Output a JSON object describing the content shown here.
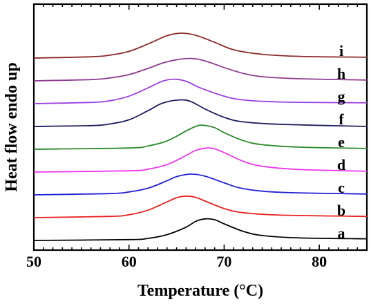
{
  "chart_data": {
    "type": "line",
    "title": "",
    "xlabel": "Temperature (°C)",
    "ylabel": "Heat flow endo up",
    "xlim": [
      50,
      85
    ],
    "x_ticks": [
      50,
      60,
      70,
      80
    ],
    "y_ticks_shown": false,
    "grid": false,
    "legend": "none",
    "series": [
      {
        "name": "a",
        "color": "#000000",
        "points": [
          [
            50,
            0.0
          ],
          [
            60,
            0.1
          ],
          [
            62,
            0.25
          ],
          [
            64,
            0.7
          ],
          [
            66,
            1.6
          ],
          [
            67,
            2.3
          ],
          [
            68,
            2.6
          ],
          [
            69,
            2.5
          ],
          [
            70,
            2.0
          ],
          [
            72,
            1.1
          ],
          [
            74,
            0.6
          ],
          [
            78,
            0.3
          ],
          [
            85,
            0.2
          ]
        ]
      },
      {
        "name": "b",
        "color": "#e8221e",
        "points": [
          [
            50,
            0.0
          ],
          [
            58,
            0.15
          ],
          [
            60,
            0.35
          ],
          [
            62,
            0.9
          ],
          [
            64,
            1.9
          ],
          [
            65,
            2.4
          ],
          [
            66,
            2.6
          ],
          [
            67,
            2.45
          ],
          [
            68,
            2.0
          ],
          [
            70,
            1.1
          ],
          [
            72,
            0.6
          ],
          [
            76,
            0.3
          ],
          [
            85,
            0.15
          ]
        ]
      },
      {
        "name": "c",
        "color": "#1f1fd6",
        "points": [
          [
            50,
            0.0
          ],
          [
            58,
            0.15
          ],
          [
            60,
            0.35
          ],
          [
            62,
            0.8
          ],
          [
            64,
            1.7
          ],
          [
            65,
            2.2
          ],
          [
            66.5,
            2.5
          ],
          [
            68,
            2.25
          ],
          [
            70,
            1.45
          ],
          [
            72,
            0.75
          ],
          [
            76,
            0.3
          ],
          [
            85,
            0.1
          ]
        ]
      },
      {
        "name": "d",
        "color": "#ee33ee",
        "points": [
          [
            50,
            0.0
          ],
          [
            60,
            0.15
          ],
          [
            62,
            0.35
          ],
          [
            64,
            0.9
          ],
          [
            66,
            2.0
          ],
          [
            67,
            2.6
          ],
          [
            68.2,
            2.9
          ],
          [
            69,
            2.8
          ],
          [
            70,
            2.35
          ],
          [
            72,
            1.3
          ],
          [
            74,
            0.7
          ],
          [
            78,
            0.3
          ],
          [
            85,
            0.1
          ]
        ]
      },
      {
        "name": "e",
        "color": "#2a8a2a",
        "points": [
          [
            50,
            0.0
          ],
          [
            60,
            0.15
          ],
          [
            62,
            0.4
          ],
          [
            64,
            1.0
          ],
          [
            66,
            2.2
          ],
          [
            67,
            2.75
          ],
          [
            67.7,
            2.9
          ],
          [
            69,
            2.6
          ],
          [
            70,
            2.0
          ],
          [
            72,
            1.05
          ],
          [
            74,
            0.55
          ],
          [
            78,
            0.25
          ],
          [
            85,
            0.1
          ]
        ]
      },
      {
        "name": "f",
        "color": "#1a1a5e",
        "points": [
          [
            50,
            0.0
          ],
          [
            56,
            0.1
          ],
          [
            58,
            0.3
          ],
          [
            60,
            0.8
          ],
          [
            62,
            1.9
          ],
          [
            63.5,
            2.8
          ],
          [
            65.3,
            3.2
          ],
          [
            66.5,
            3.0
          ],
          [
            68,
            2.1
          ],
          [
            70,
            1.1
          ],
          [
            72,
            0.55
          ],
          [
            76,
            0.25
          ],
          [
            85,
            0.0
          ]
        ]
      },
      {
        "name": "g",
        "color": "#9b3ee0",
        "points": [
          [
            50,
            0.0
          ],
          [
            56,
            0.15
          ],
          [
            58,
            0.35
          ],
          [
            60,
            0.9
          ],
          [
            62,
            1.9
          ],
          [
            63.5,
            2.7
          ],
          [
            64.7,
            2.95
          ],
          [
            66,
            2.7
          ],
          [
            67.5,
            1.9
          ],
          [
            70,
            0.9
          ],
          [
            72,
            0.45
          ],
          [
            76,
            0.2
          ],
          [
            85,
            0.1
          ]
        ]
      },
      {
        "name": "h",
        "color": "#8e3a8e",
        "points": [
          [
            50,
            0.0
          ],
          [
            56,
            0.15
          ],
          [
            58,
            0.35
          ],
          [
            60,
            0.75
          ],
          [
            62,
            1.5
          ],
          [
            64,
            2.3
          ],
          [
            66.3,
            2.7
          ],
          [
            68,
            2.4
          ],
          [
            70,
            1.6
          ],
          [
            72,
            0.9
          ],
          [
            74,
            0.5
          ],
          [
            78,
            0.25
          ],
          [
            85,
            0.1
          ]
        ]
      },
      {
        "name": "i",
        "color": "#8b2a2a",
        "points": [
          [
            50,
            0.0
          ],
          [
            56,
            0.15
          ],
          [
            58,
            0.35
          ],
          [
            60,
            0.8
          ],
          [
            62,
            1.7
          ],
          [
            64,
            2.7
          ],
          [
            65.5,
            3.0
          ],
          [
            67,
            2.75
          ],
          [
            69,
            1.9
          ],
          [
            71,
            1.0
          ],
          [
            74,
            0.45
          ],
          [
            78,
            0.2
          ],
          [
            85,
            0.1
          ]
        ]
      }
    ]
  }
}
